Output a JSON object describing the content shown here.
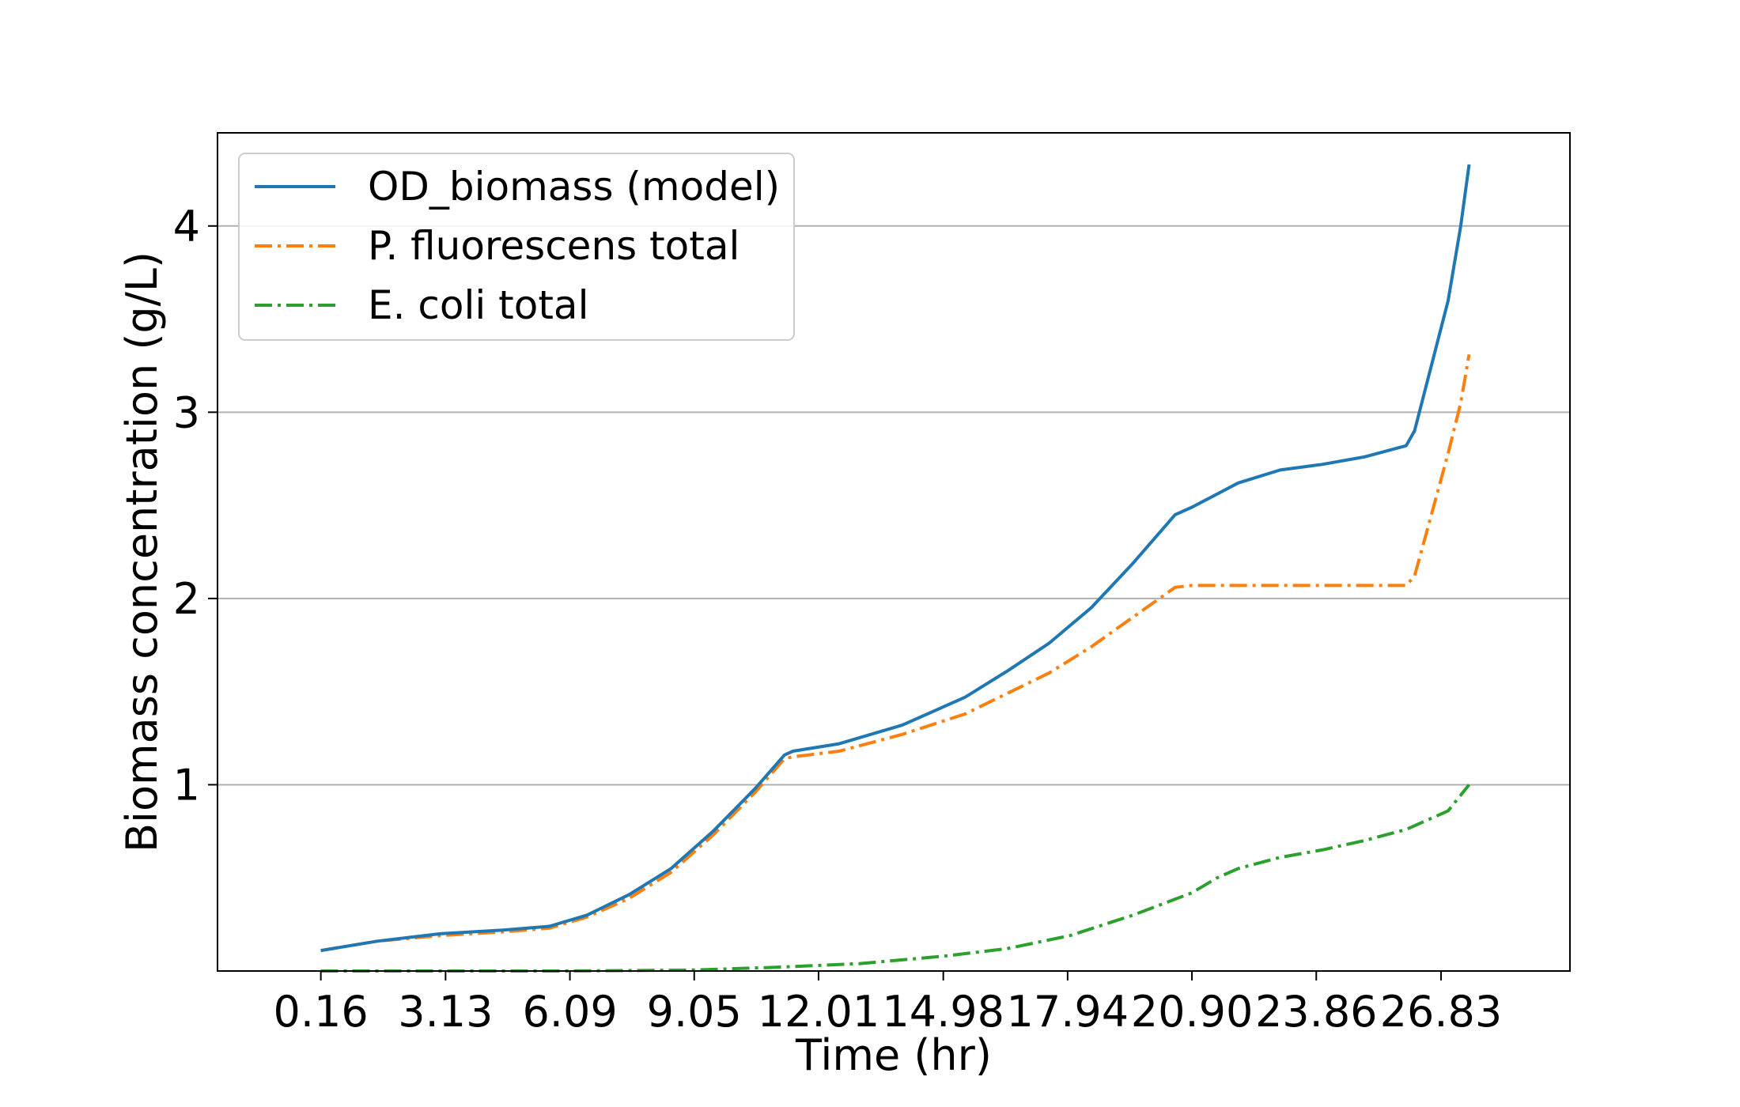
{
  "chart_data": {
    "type": "line",
    "xlabel": "Time (hr)",
    "ylabel": "Biomass concentration (g/L)",
    "xlim": [
      -2.3,
      29.9
    ],
    "ylim": [
      0,
      4.5
    ],
    "x_ticks": [
      0.16,
      3.13,
      6.09,
      9.05,
      12.01,
      14.98,
      17.94,
      20.9,
      23.86,
      26.83
    ],
    "x_tick_labels": [
      "0.16",
      "3.13",
      "6.09",
      "9.05",
      "12.01",
      "14.98",
      "17.94",
      "20.90",
      "23.86",
      "26.83"
    ],
    "y_ticks": [
      1,
      2,
      3,
      4
    ],
    "y_tick_labels": [
      "1",
      "2",
      "3",
      "4"
    ],
    "grid": "y-major",
    "legend_position": "upper-left",
    "series": [
      {
        "name": "OD_biomass (model)",
        "color": "#1f77b4",
        "linestyle": "solid",
        "x": [
          0.16,
          1.5,
          3.0,
          4.5,
          5.6,
          6.5,
          7.5,
          8.5,
          9.5,
          10.5,
          11.2,
          11.4,
          12.5,
          14.0,
          15.5,
          16.5,
          17.5,
          18.5,
          19.5,
          20.5,
          20.9,
          22.0,
          23.0,
          24.0,
          25.0,
          26.0,
          26.2,
          26.6,
          27.0,
          27.3,
          27.5
        ],
        "y": [
          0.11,
          0.16,
          0.2,
          0.22,
          0.24,
          0.3,
          0.41,
          0.55,
          0.75,
          0.98,
          1.16,
          1.18,
          1.22,
          1.32,
          1.47,
          1.61,
          1.76,
          1.95,
          2.19,
          2.45,
          2.49,
          2.62,
          2.69,
          2.72,
          2.76,
          2.82,
          2.9,
          3.25,
          3.6,
          4.0,
          4.33
        ]
      },
      {
        "name": "P. fluorescens total",
        "color": "#ff7f0e",
        "linestyle": "dashdot",
        "x": [
          0.16,
          1.5,
          3.0,
          4.5,
          5.6,
          6.5,
          7.5,
          8.5,
          9.5,
          10.5,
          11.2,
          11.4,
          12.5,
          14.0,
          15.5,
          16.5,
          17.5,
          18.5,
          19.5,
          20.5,
          20.9,
          22.0,
          23.0,
          24.0,
          25.0,
          26.0,
          26.2,
          26.6,
          27.0,
          27.3,
          27.5
        ],
        "y": [
          0.11,
          0.16,
          0.19,
          0.21,
          0.23,
          0.29,
          0.39,
          0.53,
          0.73,
          0.96,
          1.14,
          1.15,
          1.18,
          1.27,
          1.38,
          1.49,
          1.6,
          1.74,
          1.9,
          2.06,
          2.07,
          2.07,
          2.07,
          2.07,
          2.07,
          2.07,
          2.12,
          2.45,
          2.78,
          3.05,
          3.31
        ]
      },
      {
        "name": "E. coli total",
        "color": "#2ca02c",
        "linestyle": "dashdot",
        "x": [
          0.16,
          3.0,
          6.0,
          9.0,
          11.0,
          13.0,
          15.0,
          16.5,
          18.0,
          19.5,
          20.9,
          21.5,
          22.0,
          23.0,
          24.0,
          25.0,
          26.0,
          27.0,
          27.5
        ],
        "y": [
          0.0,
          0.0,
          0.0,
          0.005,
          0.02,
          0.04,
          0.08,
          0.12,
          0.19,
          0.3,
          0.42,
          0.5,
          0.55,
          0.61,
          0.65,
          0.7,
          0.76,
          0.86,
          1.0
        ]
      }
    ]
  }
}
